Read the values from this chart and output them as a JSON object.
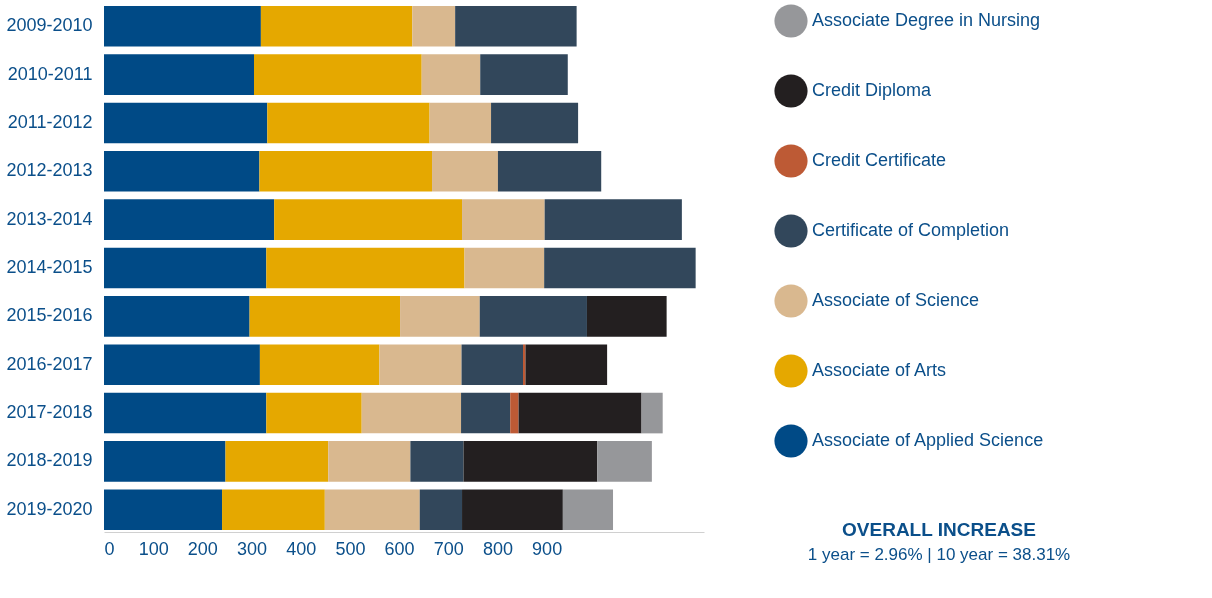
{
  "chart_data": {
    "type": "bar",
    "orientation": "horizontal",
    "stacked": true,
    "categories": [
      "2009-2010",
      "2010-2011",
      "2011-2012",
      "2012-2013",
      "2013-2014",
      "2014-2015",
      "2015-2016",
      "2016-2017",
      "2017-2018",
      "2018-2019",
      "2019-2020"
    ],
    "series": [
      {
        "name": "Associate of Applied Science",
        "color": "#004a86",
        "values": [
          319,
          305,
          332,
          316,
          346,
          330,
          296,
          317,
          330,
          247,
          240
        ]
      },
      {
        "name": "Associate of Arts",
        "color": "#e5a800",
        "values": [
          308,
          341,
          330,
          351,
          382,
          403,
          306,
          243,
          194,
          209,
          209
        ]
      },
      {
        "name": "Associate of Science",
        "color": "#d9b88f",
        "values": [
          87,
          119,
          125,
          134,
          168,
          162,
          162,
          167,
          202,
          167,
          193
        ]
      },
      {
        "name": "Certificate of Completion",
        "color": "#32475b",
        "values": [
          247,
          178,
          177,
          210,
          279,
          308,
          218,
          125,
          100,
          108,
          86
        ]
      },
      {
        "name": "Credit Certificate",
        "color": "#bd5a35",
        "values": [
          null,
          null,
          null,
          null,
          null,
          null,
          null,
          5,
          17,
          null,
          null
        ]
      },
      {
        "name": "Credit Diploma",
        "color": "#231f20",
        "values": [
          null,
          null,
          null,
          null,
          null,
          null,
          162,
          166,
          250,
          272,
          205
        ]
      },
      {
        "name": "Associate Degree in Nursing",
        "color": "#96979a",
        "values": [
          null,
          null,
          null,
          null,
          null,
          null,
          null,
          null,
          43,
          111,
          102
        ]
      }
    ],
    "xlim": [
      0,
      1220
    ],
    "xticks": [
      0,
      100,
      200,
      300,
      400,
      500,
      600,
      700,
      800,
      900
    ],
    "grid": false,
    "legend": "right",
    "annotations": [
      "OVERALL INCREASE",
      "1 year = 2.96% | 10 year = 38.31%"
    ]
  }
}
